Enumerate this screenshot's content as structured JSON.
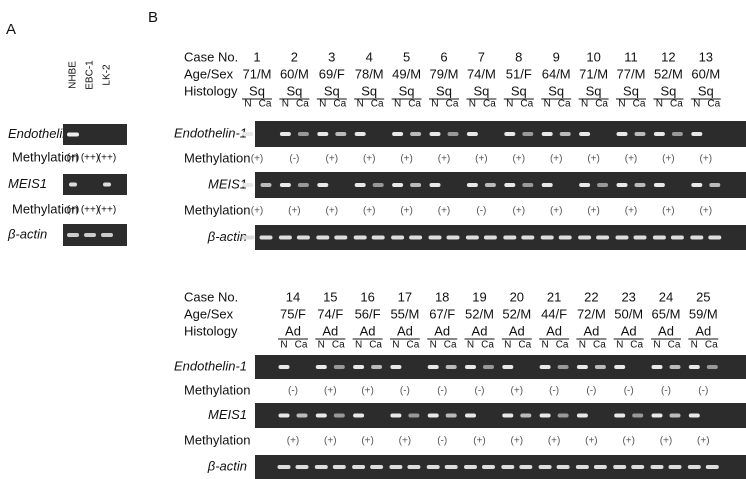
{
  "panel_a": {
    "label": "A",
    "lanes": [
      "NHBE",
      "EBC-1",
      "LK-2"
    ],
    "genes": [
      "Endothelin-1",
      "MEIS1",
      "β-actin"
    ],
    "methylation_label": "Methylation",
    "methylation": [
      [
        "(+)",
        "(++)",
        "(++)"
      ],
      [
        "(+)",
        "(++)",
        "(++)"
      ]
    ]
  },
  "panel_b": {
    "label": "B",
    "row_labels": {
      "case": "Case No.",
      "age_sex": "Age/Sex",
      "histology": "Histology"
    },
    "lane_labels": [
      "N",
      "Ca"
    ],
    "genes": [
      "Endothelin-1",
      "MEIS1",
      "β-actin"
    ],
    "methylation_label": "Methylation",
    "blocks": [
      {
        "cases": [
          {
            "no": "1",
            "age_sex": "71/M",
            "histology": "Sq",
            "endothelin_methylation": "(+)",
            "meis1_methylation": "(+)"
          },
          {
            "no": "2",
            "age_sex": "60/M",
            "histology": "Sq",
            "endothelin_methylation": "(-)",
            "meis1_methylation": "(+)"
          },
          {
            "no": "3",
            "age_sex": "69/F",
            "histology": "Sq",
            "endothelin_methylation": "(+)",
            "meis1_methylation": "(+)"
          },
          {
            "no": "4",
            "age_sex": "78/M",
            "histology": "Sq",
            "endothelin_methylation": "(+)",
            "meis1_methylation": "(+)"
          },
          {
            "no": "5",
            "age_sex": "49/M",
            "histology": "Sq",
            "endothelin_methylation": "(+)",
            "meis1_methylation": "(+)"
          },
          {
            "no": "6",
            "age_sex": "79/M",
            "histology": "Sq",
            "endothelin_methylation": "(+)",
            "meis1_methylation": "(+)"
          },
          {
            "no": "7",
            "age_sex": "74/M",
            "histology": "Sq",
            "endothelin_methylation": "(+)",
            "meis1_methylation": "(-)"
          },
          {
            "no": "8",
            "age_sex": "51/F",
            "histology": "Sq",
            "endothelin_methylation": "(+)",
            "meis1_methylation": "(+)"
          },
          {
            "no": "9",
            "age_sex": "64/M",
            "histology": "Sq",
            "endothelin_methylation": "(+)",
            "meis1_methylation": "(+)"
          },
          {
            "no": "10",
            "age_sex": "71/M",
            "histology": "Sq",
            "endothelin_methylation": "(+)",
            "meis1_methylation": "(+)"
          },
          {
            "no": "11",
            "age_sex": "77/M",
            "histology": "Sq",
            "endothelin_methylation": "(+)",
            "meis1_methylation": "(+)"
          },
          {
            "no": "12",
            "age_sex": "52/M",
            "histology": "Sq",
            "endothelin_methylation": "(+)",
            "meis1_methylation": "(+)"
          },
          {
            "no": "13",
            "age_sex": "60/M",
            "histology": "Sq",
            "endothelin_methylation": "(+)",
            "meis1_methylation": "(+)"
          }
        ]
      },
      {
        "cases": [
          {
            "no": "14",
            "age_sex": "75/F",
            "histology": "Ad",
            "endothelin_methylation": "(-)",
            "meis1_methylation": "(+)"
          },
          {
            "no": "15",
            "age_sex": "74/F",
            "histology": "Ad",
            "endothelin_methylation": "(+)",
            "meis1_methylation": "(+)"
          },
          {
            "no": "16",
            "age_sex": "56/F",
            "histology": "Ad",
            "endothelin_methylation": "(+)",
            "meis1_methylation": "(+)"
          },
          {
            "no": "17",
            "age_sex": "55/M",
            "histology": "Ad",
            "endothelin_methylation": "(-)",
            "meis1_methylation": "(+)"
          },
          {
            "no": "18",
            "age_sex": "67/F",
            "histology": "Ad",
            "endothelin_methylation": "(-)",
            "meis1_methylation": "(-)"
          },
          {
            "no": "19",
            "age_sex": "52/M",
            "histology": "Ad",
            "endothelin_methylation": "(-)",
            "meis1_methylation": "(+)"
          },
          {
            "no": "20",
            "age_sex": "52/M",
            "histology": "Ad",
            "endothelin_methylation": "(+)",
            "meis1_methylation": "(+)"
          },
          {
            "no": "21",
            "age_sex": "44/F",
            "histology": "Ad",
            "endothelin_methylation": "(-)",
            "meis1_methylation": "(+)"
          },
          {
            "no": "22",
            "age_sex": "72/M",
            "histology": "Ad",
            "endothelin_methylation": "(-)",
            "meis1_methylation": "(+)"
          },
          {
            "no": "23",
            "age_sex": "50/M",
            "histology": "Ad",
            "endothelin_methylation": "(-)",
            "meis1_methylation": "(+)"
          },
          {
            "no": "24",
            "age_sex": "65/M",
            "histology": "Ad",
            "endothelin_methylation": "(-)",
            "meis1_methylation": "(+)"
          },
          {
            "no": "25",
            "age_sex": "59/M",
            "histology": "Ad",
            "endothelin_methylation": "(-)",
            "meis1_methylation": "(+)"
          }
        ]
      }
    ]
  }
}
